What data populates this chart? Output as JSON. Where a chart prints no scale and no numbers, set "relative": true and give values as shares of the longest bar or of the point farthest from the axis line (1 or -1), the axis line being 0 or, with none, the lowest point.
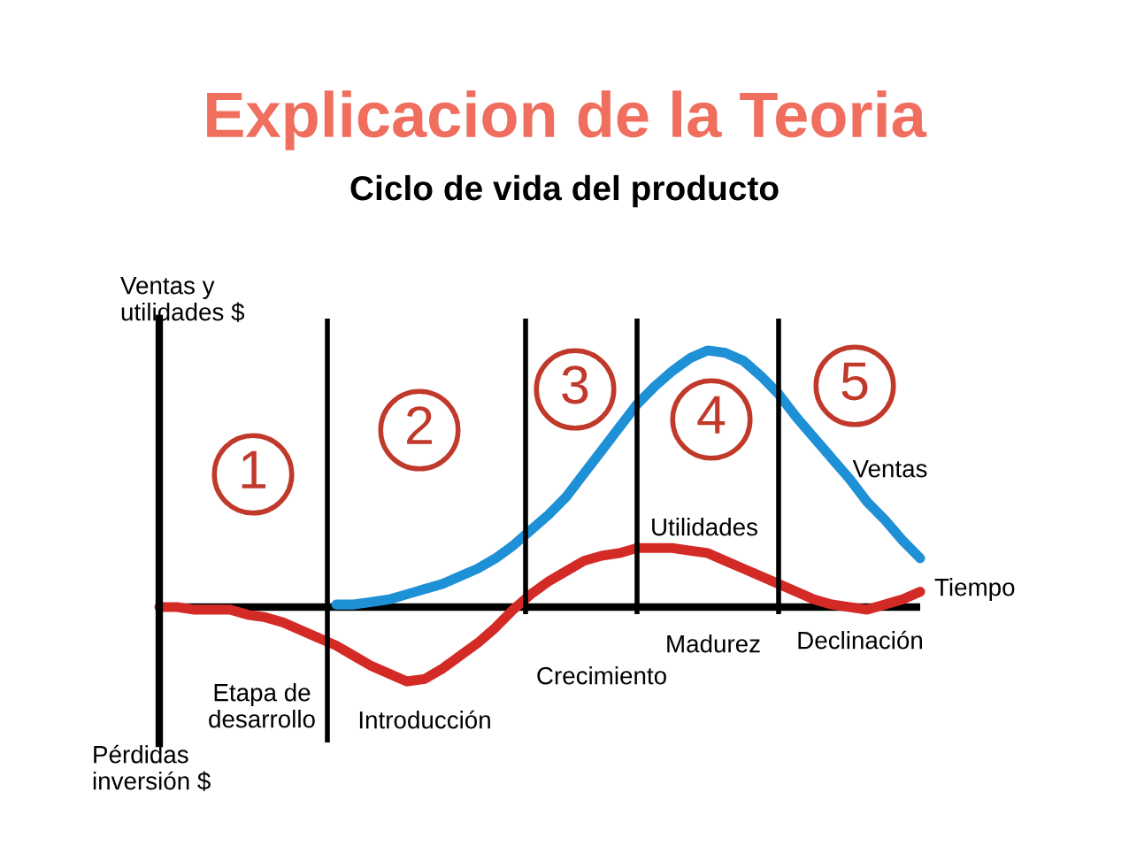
{
  "chart_data": {
    "type": "line",
    "title": "Explicacion de la Teoria",
    "subtitle": "Ciclo de vida del producto",
    "xlabel": "Tiempo",
    "ylabel": "Ventas y\nutilidades $",
    "relative": true,
    "legend": false,
    "marker": "none",
    "line_style": "solid",
    "categories": [
      null,
      null,
      null,
      null,
      null,
      null,
      null,
      null,
      null,
      null,
      null,
      null,
      null,
      null,
      null,
      null,
      null,
      null,
      null,
      null,
      null,
      null,
      null,
      null,
      null,
      null,
      null,
      null,
      null,
      null,
      null,
      null,
      null,
      null,
      null,
      null,
      null,
      null,
      null,
      null,
      null,
      null,
      null,
      null
    ],
    "series": [
      {
        "name": "Ventas",
        "color": "#1e90d6",
        "values": [
          null,
          null,
          null,
          null,
          null,
          null,
          null,
          null,
          null,
          null,
          0.01,
          0.01,
          0.02,
          0.03,
          0.05,
          0.07,
          0.09,
          0.12,
          0.15,
          0.19,
          0.24,
          0.3,
          0.36,
          0.43,
          0.52,
          0.61,
          0.7,
          0.79,
          0.86,
          0.92,
          0.97,
          1.0,
          0.99,
          0.96,
          0.9,
          0.83,
          0.74,
          0.66,
          0.58,
          0.5,
          0.41,
          0.34,
          0.26,
          0.19
        ]
      },
      {
        "name": "Utilidades",
        "color": "#d42a25",
        "values": [
          0,
          0,
          -0.01,
          -0.01,
          -0.01,
          -0.03,
          -0.04,
          -0.06,
          -0.09,
          -0.12,
          -0.15,
          -0.19,
          -0.23,
          -0.26,
          -0.29,
          -0.28,
          -0.24,
          -0.19,
          -0.14,
          -0.08,
          -0.01,
          0.05,
          0.1,
          0.14,
          0.18,
          0.2,
          0.21,
          0.23,
          0.23,
          0.23,
          0.22,
          0.21,
          0.18,
          0.15,
          0.12,
          0.09,
          0.06,
          0.03,
          0.01,
          0,
          -0.01,
          0.01,
          0.03,
          0.06
        ]
      }
    ],
    "annotations": [
      "1",
      "2",
      "3",
      "4",
      "5",
      "Etapa de\ndesarrollo",
      "Introducción",
      "Crecimiento",
      "Madurez",
      "Declinación",
      "Pérdidas\ninversión $"
    ]
  }
}
